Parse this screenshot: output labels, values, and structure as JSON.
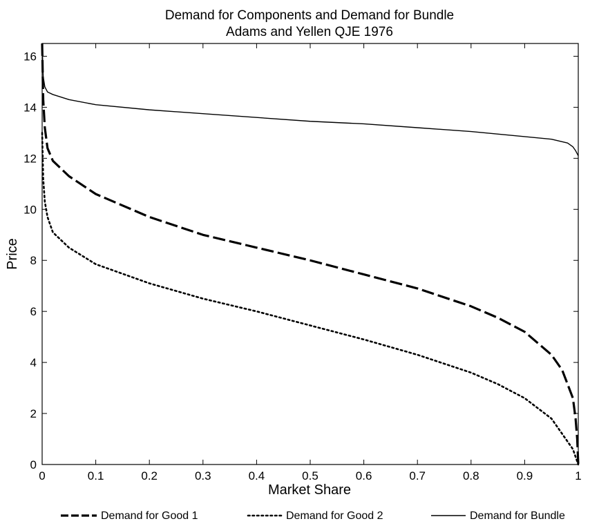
{
  "chart_data": {
    "type": "line",
    "title": "Demand for Components and Demand for Bundle",
    "subtitle": "Adams and Yellen QJE 1976",
    "xlabel": "Market Share",
    "ylabel": "Price",
    "xlim": [
      0,
      1
    ],
    "ylim": [
      0,
      16.5
    ],
    "xticks": [
      0,
      0.1,
      0.2,
      0.3,
      0.4,
      0.5,
      0.6,
      0.7,
      0.8,
      0.9,
      1
    ],
    "xtick_labels": [
      "0",
      "0.1",
      "0.2",
      "0.3",
      "0.4",
      "0.5",
      "0.6",
      "0.7",
      "0.8",
      "0.9",
      "1"
    ],
    "yticks": [
      0,
      2,
      4,
      6,
      8,
      10,
      12,
      14,
      16
    ],
    "ytick_labels": [
      "0",
      "2",
      "4",
      "6",
      "8",
      "10",
      "12",
      "14",
      "16"
    ],
    "grid": false,
    "legend_position": "bottom",
    "series": [
      {
        "name": "Demand for Good 1",
        "style": "dashed",
        "x": [
          0,
          0.002,
          0.005,
          0.01,
          0.02,
          0.05,
          0.1,
          0.2,
          0.3,
          0.4,
          0.5,
          0.6,
          0.7,
          0.8,
          0.85,
          0.9,
          0.95,
          0.97,
          0.99,
          0.995,
          0.998,
          1.0
        ],
        "y": [
          16.5,
          14.3,
          13.2,
          12.4,
          11.9,
          11.3,
          10.6,
          9.7,
          9.0,
          8.5,
          8.0,
          7.45,
          6.9,
          6.2,
          5.75,
          5.2,
          4.3,
          3.7,
          2.6,
          1.8,
          1.0,
          0
        ]
      },
      {
        "name": "Demand for Good 2",
        "style": "dotted",
        "x": [
          0,
          0.002,
          0.005,
          0.01,
          0.02,
          0.05,
          0.1,
          0.2,
          0.3,
          0.4,
          0.5,
          0.6,
          0.7,
          0.8,
          0.85,
          0.9,
          0.95,
          0.97,
          0.99,
          0.995,
          1.0
        ],
        "y": [
          13.0,
          11.2,
          10.3,
          9.7,
          9.1,
          8.5,
          7.85,
          7.1,
          6.5,
          6.0,
          5.45,
          4.9,
          4.3,
          3.6,
          3.15,
          2.6,
          1.8,
          1.2,
          0.6,
          0.3,
          0
        ]
      },
      {
        "name": "Demand for Bundle",
        "style": "solid",
        "x": [
          0,
          0.002,
          0.005,
          0.01,
          0.02,
          0.05,
          0.1,
          0.2,
          0.3,
          0.4,
          0.5,
          0.6,
          0.7,
          0.8,
          0.9,
          0.95,
          0.98,
          0.99,
          0.995,
          1.0
        ],
        "y": [
          16.5,
          15.2,
          14.8,
          14.6,
          14.5,
          14.3,
          14.1,
          13.9,
          13.75,
          13.6,
          13.45,
          13.35,
          13.2,
          13.05,
          12.85,
          12.75,
          12.6,
          12.45,
          12.3,
          12.1
        ]
      }
    ]
  }
}
